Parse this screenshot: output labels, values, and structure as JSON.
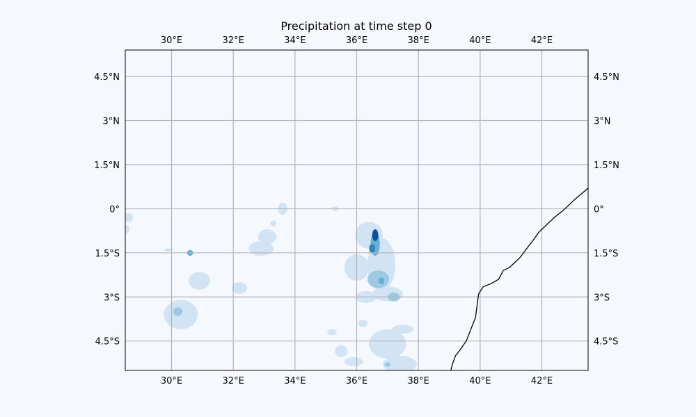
{
  "title": "Precipitation at time step 0",
  "colors": {
    "background": "#f5f8fc",
    "axes_background": "#f5f8fc",
    "gridline": "#b0b4b8",
    "coastline": "#000000",
    "precip_light": "#d2e3f3",
    "precip_mid": "#9ecae1",
    "precip_medium": "#6baed6",
    "precip_strong": "#3182bd",
    "precip_heavy": "#08519c"
  },
  "chart_data": {
    "type": "heatmap",
    "projection": "PlateCarree",
    "xlim_lon": [
      28.5,
      43.5
    ],
    "ylim_lat": [
      -5.5,
      5.4
    ],
    "grid": true,
    "colormap": "Blues",
    "x_ticks": [
      {
        "value": 30,
        "label": "30°E"
      },
      {
        "value": 32,
        "label": "32°E"
      },
      {
        "value": 34,
        "label": "34°E"
      },
      {
        "value": 36,
        "label": "36°E"
      },
      {
        "value": 38,
        "label": "38°E"
      },
      {
        "value": 40,
        "label": "40°E"
      },
      {
        "value": 42,
        "label": "42°E"
      }
    ],
    "y_ticks": [
      {
        "value": 4.5,
        "label": "4.5°N"
      },
      {
        "value": 3,
        "label": "3°N"
      },
      {
        "value": 1.5,
        "label": "1.5°N"
      },
      {
        "value": 0,
        "label": "0°"
      },
      {
        "value": -1.5,
        "label": "1.5°S"
      },
      {
        "value": -3,
        "label": "3°S"
      },
      {
        "value": -4.5,
        "label": "4.5°S"
      }
    ],
    "coastline": [
      [
        39.05,
        -5.5
      ],
      [
        39.1,
        -5.3
      ],
      [
        39.2,
        -5.0
      ],
      [
        39.35,
        -4.8
      ],
      [
        39.55,
        -4.5
      ],
      [
        39.7,
        -4.1
      ],
      [
        39.85,
        -3.7
      ],
      [
        39.9,
        -3.3
      ],
      [
        39.95,
        -2.9
      ],
      [
        40.1,
        -2.65
      ],
      [
        40.35,
        -2.55
      ],
      [
        40.6,
        -2.4
      ],
      [
        40.75,
        -2.1
      ],
      [
        40.95,
        -2.0
      ],
      [
        41.1,
        -1.85
      ],
      [
        41.3,
        -1.65
      ],
      [
        41.55,
        -1.3
      ],
      [
        41.7,
        -1.1
      ],
      [
        41.9,
        -0.8
      ],
      [
        42.15,
        -0.55
      ],
      [
        42.4,
        -0.3
      ],
      [
        42.7,
        -0.05
      ],
      [
        43.05,
        0.3
      ],
      [
        43.5,
        0.7
      ]
    ],
    "precip_regions": [
      {
        "lon": 28.6,
        "lat": -0.3,
        "rlon": 0.15,
        "rlat": 0.15,
        "intensity": 1
      },
      {
        "lon": 28.55,
        "lat": -0.7,
        "rlon": 0.08,
        "rlat": 0.15,
        "intensity": 1
      },
      {
        "lon": 29.9,
        "lat": -1.4,
        "rlon": 0.15,
        "rlat": 0.05,
        "intensity": 1
      },
      {
        "lon": 30.6,
        "lat": -1.5,
        "rlon": 0.1,
        "rlat": 0.1,
        "intensity": 3
      },
      {
        "lon": 30.9,
        "lat": -2.45,
        "rlon": 0.35,
        "rlat": 0.3,
        "intensity": 1
      },
      {
        "lon": 30.3,
        "lat": -3.6,
        "rlon": 0.55,
        "rlat": 0.5,
        "intensity": 1
      },
      {
        "lon": 30.2,
        "lat": -3.5,
        "rlon": 0.15,
        "rlat": 0.15,
        "intensity": 2
      },
      {
        "lon": 32.2,
        "lat": -2.7,
        "rlon": 0.25,
        "rlat": 0.2,
        "intensity": 1
      },
      {
        "lon": 32.9,
        "lat": -1.35,
        "rlon": 0.4,
        "rlat": 0.25,
        "intensity": 1
      },
      {
        "lon": 33.1,
        "lat": -0.95,
        "rlon": 0.3,
        "rlat": 0.25,
        "intensity": 1
      },
      {
        "lon": 33.6,
        "lat": 0.0,
        "rlon": 0.15,
        "rlat": 0.2,
        "intensity": 1
      },
      {
        "lon": 33.3,
        "lat": -0.5,
        "rlon": 0.1,
        "rlat": 0.1,
        "intensity": 1
      },
      {
        "lon": 35.3,
        "lat": 0.0,
        "rlon": 0.1,
        "rlat": 0.08,
        "intensity": 1
      },
      {
        "lon": 36.4,
        "lat": -0.9,
        "rlon": 0.45,
        "rlat": 0.45,
        "intensity": 1
      },
      {
        "lon": 36.0,
        "lat": -2.0,
        "rlon": 0.4,
        "rlat": 0.45,
        "intensity": 1
      },
      {
        "lon": 36.8,
        "lat": -1.9,
        "rlon": 0.45,
        "rlat": 0.9,
        "intensity": 1
      },
      {
        "lon": 36.6,
        "lat": -1.2,
        "rlon": 0.15,
        "rlat": 0.4,
        "intensity": 3
      },
      {
        "lon": 36.6,
        "lat": -0.9,
        "rlon": 0.1,
        "rlat": 0.2,
        "intensity": 5
      },
      {
        "lon": 36.5,
        "lat": -1.35,
        "rlon": 0.1,
        "rlat": 0.15,
        "intensity": 4
      },
      {
        "lon": 36.7,
        "lat": -2.4,
        "rlon": 0.35,
        "rlat": 0.3,
        "intensity": 2
      },
      {
        "lon": 36.8,
        "lat": -2.45,
        "rlon": 0.1,
        "rlat": 0.12,
        "intensity": 3
      },
      {
        "lon": 37.0,
        "lat": -2.9,
        "rlon": 0.5,
        "rlat": 0.25,
        "intensity": 1
      },
      {
        "lon": 37.2,
        "lat": -3.0,
        "rlon": 0.2,
        "rlat": 0.15,
        "intensity": 2
      },
      {
        "lon": 36.3,
        "lat": -3.0,
        "rlon": 0.35,
        "rlat": 0.2,
        "intensity": 1
      },
      {
        "lon": 35.2,
        "lat": -4.2,
        "rlon": 0.15,
        "rlat": 0.1,
        "intensity": 1
      },
      {
        "lon": 35.5,
        "lat": -4.85,
        "rlon": 0.2,
        "rlat": 0.2,
        "intensity": 1
      },
      {
        "lon": 35.9,
        "lat": -5.2,
        "rlon": 0.3,
        "rlat": 0.15,
        "intensity": 1
      },
      {
        "lon": 37.0,
        "lat": -4.6,
        "rlon": 0.6,
        "rlat": 0.5,
        "intensity": 1
      },
      {
        "lon": 37.4,
        "lat": -5.3,
        "rlon": 0.55,
        "rlat": 0.3,
        "intensity": 1
      },
      {
        "lon": 37.5,
        "lat": -4.1,
        "rlon": 0.35,
        "rlat": 0.15,
        "intensity": 1
      },
      {
        "lon": 36.2,
        "lat": -3.9,
        "rlon": 0.15,
        "rlat": 0.12,
        "intensity": 1
      },
      {
        "lon": 37.0,
        "lat": -5.3,
        "rlon": 0.1,
        "rlat": 0.08,
        "intensity": 2
      }
    ]
  }
}
